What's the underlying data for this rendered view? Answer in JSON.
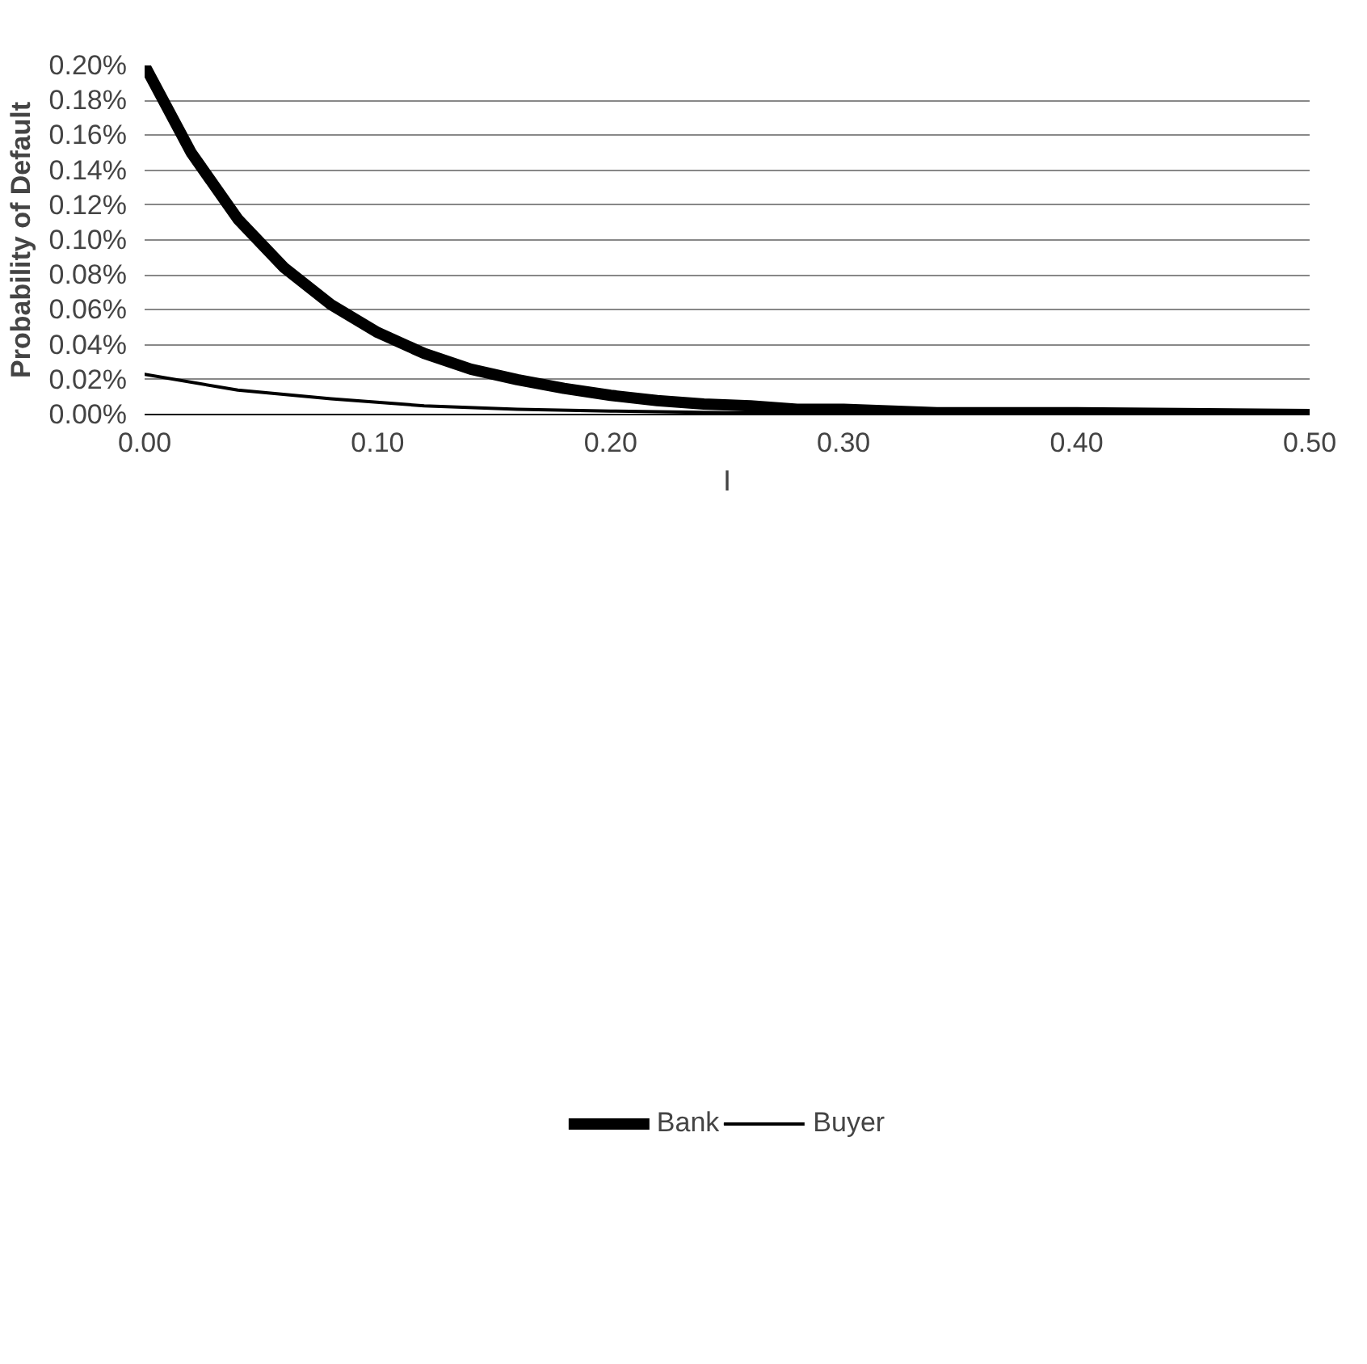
{
  "chart_data": {
    "type": "line",
    "xlabel": "I",
    "ylabel": "Probability of Default",
    "series": [
      {
        "name": "Bank",
        "color": "#000000",
        "x": [
          0,
          0.02,
          0.04,
          0.06,
          0.08,
          0.1,
          0.12,
          0.14,
          0.16,
          0.18,
          0.2,
          0.22,
          0.24,
          0.26,
          0.28,
          0.3,
          0.34,
          0.4,
          0.5
        ],
        "values": [
          0.2,
          0.15,
          0.112,
          0.084,
          0.063,
          0.047,
          0.035,
          0.026,
          0.02,
          0.015,
          0.011,
          0.008,
          0.006,
          0.005,
          0.003,
          0.003,
          0.001,
          0.001,
          0.0
        ]
      },
      {
        "name": "Buyer",
        "color": "#000000",
        "x": [
          0,
          0.04,
          0.08,
          0.12,
          0.16,
          0.2,
          0.25,
          0.3,
          0.4,
          0.5
        ],
        "values": [
          0.023,
          0.014,
          0.009,
          0.005,
          0.003,
          0.002,
          0.001,
          0.001,
          0.0,
          0.0
        ]
      }
    ],
    "xlim": [
      0,
      0.5
    ],
    "xticks": [
      {
        "value": 0,
        "label": "0.00"
      },
      {
        "value": 0.1,
        "label": "0.10"
      },
      {
        "value": 0.2,
        "label": "0.20"
      },
      {
        "value": 0.3,
        "label": "0.30"
      },
      {
        "value": 0.4,
        "label": "0.40"
      },
      {
        "value": 0.5,
        "label": "0.50"
      }
    ],
    "ylim": [
      0,
      0.2
    ],
    "yticks": [
      {
        "value": 0,
        "label": "0.00%"
      },
      {
        "value": 0.02,
        "label": "0.02%"
      },
      {
        "value": 0.04,
        "label": "0.04%"
      },
      {
        "value": 0.06,
        "label": "0.06%"
      },
      {
        "value": 0.08,
        "label": "0.08%"
      },
      {
        "value": 0.1,
        "label": "0.10%"
      },
      {
        "value": 0.12,
        "label": "0.12%"
      },
      {
        "value": 0.14,
        "label": "0.14%"
      },
      {
        "value": 0.16,
        "label": "0.16%"
      },
      {
        "value": 0.18,
        "label": "0.18%"
      },
      {
        "value": 0.2,
        "label": "0.20%"
      }
    ],
    "grid": "y",
    "legend": "bottom",
    "marker": "none",
    "line_style": "solid"
  }
}
